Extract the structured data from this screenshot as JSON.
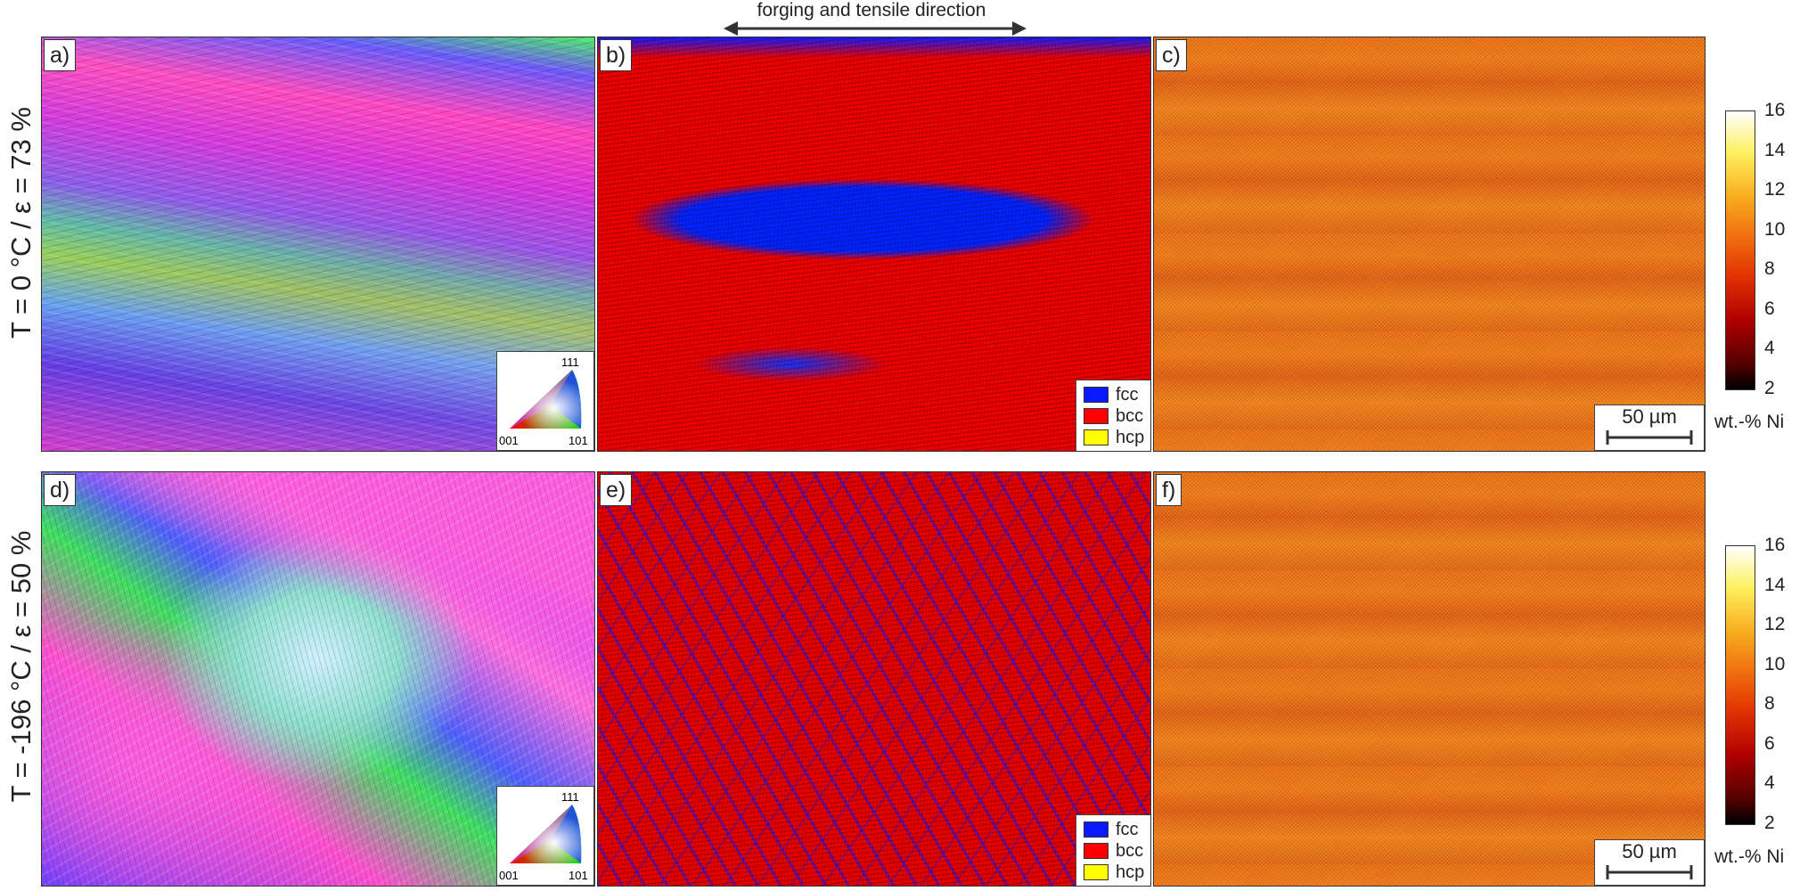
{
  "direction_label": "forging and tensile direction",
  "rows": [
    {
      "label": "T = 0 °C / ε = 73 %",
      "panels": [
        {
          "label": "a)",
          "kind": "ipf"
        },
        {
          "label": "b)",
          "kind": "phase"
        },
        {
          "label": "c)",
          "kind": "ni"
        }
      ],
      "colorbar_ticks": [
        "16",
        "14",
        "12",
        "10",
        "8",
        "6",
        "4",
        "2"
      ]
    },
    {
      "label": "T = -196 °C / ε = 50 %",
      "panels": [
        {
          "label": "d)",
          "kind": "ipf"
        },
        {
          "label": "e)",
          "kind": "phase"
        },
        {
          "label": "f)",
          "kind": "ni"
        }
      ],
      "colorbar_ticks": [
        "16",
        "14",
        "12",
        "10",
        "8",
        "6",
        "4",
        "2"
      ]
    }
  ],
  "phase_legend": [
    {
      "label": "fcc",
      "color": "#0a1aff"
    },
    {
      "label": "bcc",
      "color": "#ff0000"
    },
    {
      "label": "hcp",
      "color": "#ffff00"
    }
  ],
  "ipf_key": {
    "top": "111",
    "left": "001",
    "right": "101"
  },
  "scale_bar": "50 µm",
  "colorbar_label": "wt.-% Ni"
}
